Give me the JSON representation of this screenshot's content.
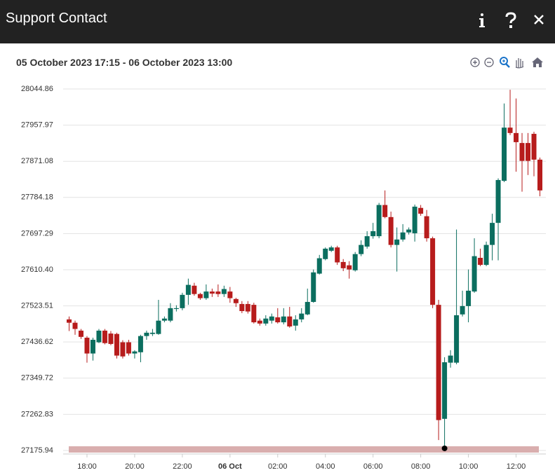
{
  "header": {
    "title": "Support Contact"
  },
  "chart_data": {
    "type": "candlestick",
    "subtitle": "05 October 2023 17:15 - 06 October 2023 13:00",
    "up_color": "#0b6e5f",
    "down_color": "#b71c1c",
    "grid": true,
    "x": [
      17.25,
      17.5,
      17.75,
      18,
      18.25,
      18.5,
      18.75,
      19,
      19.25,
      19.5,
      19.75,
      20,
      20.25,
      20.5,
      20.75,
      21,
      21.25,
      21.5,
      21.75,
      22,
      22.25,
      22.5,
      22.75,
      23,
      23.25,
      23.5,
      23.75,
      24,
      24.25,
      24.5,
      24.75,
      25,
      25.25,
      25.5,
      25.75,
      26,
      26.25,
      26.5,
      26.75,
      27,
      27.25,
      27.5,
      27.75,
      28,
      28.25,
      28.5,
      28.75,
      29,
      29.25,
      29.5,
      29.75,
      30,
      30.25,
      30.5,
      30.75,
      31,
      31.25,
      31.5,
      31.75,
      32,
      32.25,
      32.5,
      32.75,
      33,
      33.25,
      33.5,
      33.75,
      34,
      34.25,
      34.5,
      34.75,
      35,
      35.25,
      35.5,
      35.75,
      36,
      36.25,
      36.5,
      36.75,
      37
    ],
    "open": [
      27491,
      27483,
      27464,
      27447,
      27409,
      27436,
      27464,
      27457,
      27456,
      27436,
      27436,
      27409,
      27412,
      27451,
      27456,
      27456,
      27488,
      27488,
      27516,
      27518,
      27550,
      27572,
      27552,
      27542,
      27558,
      27558,
      27552,
      27558,
      27540,
      27528,
      27528,
      27526,
      27488,
      27481,
      27488,
      27496,
      27484,
      27498,
      27476,
      27491,
      27503,
      27533,
      27601,
      27636,
      27656,
      27664,
      27629,
      27621,
      27609,
      27648,
      27666,
      27691,
      27691,
      27766,
      27737,
      27670,
      27683,
      27700,
      27698,
      27759,
      27739,
      27686,
      27526,
      27252,
      27387,
      27387,
      27503,
      27523,
      27558,
      27639,
      27622,
      27670,
      27723,
      27824,
      27952,
      27939,
      27915,
      27915,
      27937,
      27875
    ],
    "high": [
      27498,
      27488,
      27468,
      27451,
      27447,
      27468,
      27468,
      27463,
      27459,
      27441,
      27442,
      27417,
      27454,
      27464,
      27468,
      27538,
      27498,
      27530,
      27525,
      27555,
      27589,
      27579,
      27555,
      27575,
      27565,
      27575,
      27572,
      27569,
      27543,
      27535,
      27535,
      27531,
      27493,
      27501,
      27505,
      27518,
      27518,
      27521,
      27501,
      27518,
      27565,
      27611,
      27646,
      27664,
      27668,
      27668,
      27636,
      27631,
      27653,
      27681,
      27703,
      27723,
      27771,
      27801,
      27750,
      27712,
      27720,
      27712,
      27767,
      27766,
      27754,
      27690,
      27538,
      27400,
      27417,
      27707,
      27560,
      27611,
      27686,
      27661,
      27678,
      27745,
      27830,
      28010,
      28043,
      28022,
      27939,
      27939,
      27942,
      27880
    ],
    "low": [
      27463,
      27454,
      27444,
      27387,
      27392,
      27434,
      27431,
      27429,
      27397,
      27397,
      27404,
      27397,
      27388,
      27442,
      27451,
      27454,
      27484,
      27484,
      27510,
      27513,
      27526,
      27548,
      27538,
      27538,
      27545,
      27545,
      27545,
      27531,
      27521,
      27506,
      27505,
      27481,
      27476,
      27476,
      27481,
      27481,
      27479,
      27471,
      27464,
      27484,
      27501,
      27531,
      27599,
      27633,
      27653,
      27622,
      27607,
      27589,
      27606,
      27643,
      27661,
      27685,
      27686,
      27734,
      27664,
      27606,
      27678,
      27695,
      27678,
      27740,
      27678,
      27518,
      27201,
      27181,
      27375,
      27383,
      27498,
      27484,
      27555,
      27619,
      27619,
      27633,
      27633,
      27821,
      27934,
      27846,
      27798,
      27838,
      27835,
      27787
    ],
    "close": [
      27483,
      27468,
      27449,
      27409,
      27442,
      27464,
      27434,
      27432,
      27404,
      27402,
      27409,
      27414,
      27451,
      27459,
      27459,
      27488,
      27493,
      27518,
      27518,
      27550,
      27574,
      27552,
      27542,
      27558,
      27553,
      27552,
      27564,
      27542,
      27530,
      27511,
      27510,
      27484,
      27481,
      27493,
      27498,
      27484,
      27498,
      27474,
      27491,
      27505,
      27533,
      27604,
      27638,
      27661,
      27664,
      27628,
      27614,
      27611,
      27648,
      27670,
      27691,
      27703,
      27766,
      27737,
      27670,
      27683,
      27700,
      27707,
      27762,
      27745,
      27686,
      27526,
      27249,
      27388,
      27404,
      27501,
      27523,
      27560,
      27643,
      27622,
      27670,
      27723,
      27826,
      27952,
      27939,
      27917,
      27872,
      27872,
      27875,
      27801
    ],
    "xlim": [
      17,
      37.25
    ],
    "xticks": [
      {
        "value": 18,
        "label": "18:00"
      },
      {
        "value": 20,
        "label": "20:00"
      },
      {
        "value": 22,
        "label": "22:00"
      },
      {
        "value": 24,
        "label": "06 Oct"
      },
      {
        "value": 26,
        "label": "02:00"
      },
      {
        "value": 28,
        "label": "04:00"
      },
      {
        "value": 30,
        "label": "06:00"
      },
      {
        "value": 32,
        "label": "08:00"
      },
      {
        "value": 34,
        "label": "10:00"
      },
      {
        "value": 36,
        "label": "12:00"
      }
    ],
    "ylim": [
      27167.5,
      28060
    ],
    "yticks": [
      27175.94,
      27262.83,
      {
        "value": 27349.72,
        "label": "27349.72"
      },
      27436.62,
      27523.51,
      {
        "value": 27610.4,
        "label": "27610.40"
      },
      27697.29,
      27784.18,
      27871.08,
      27957.97,
      28044.86
    ]
  }
}
